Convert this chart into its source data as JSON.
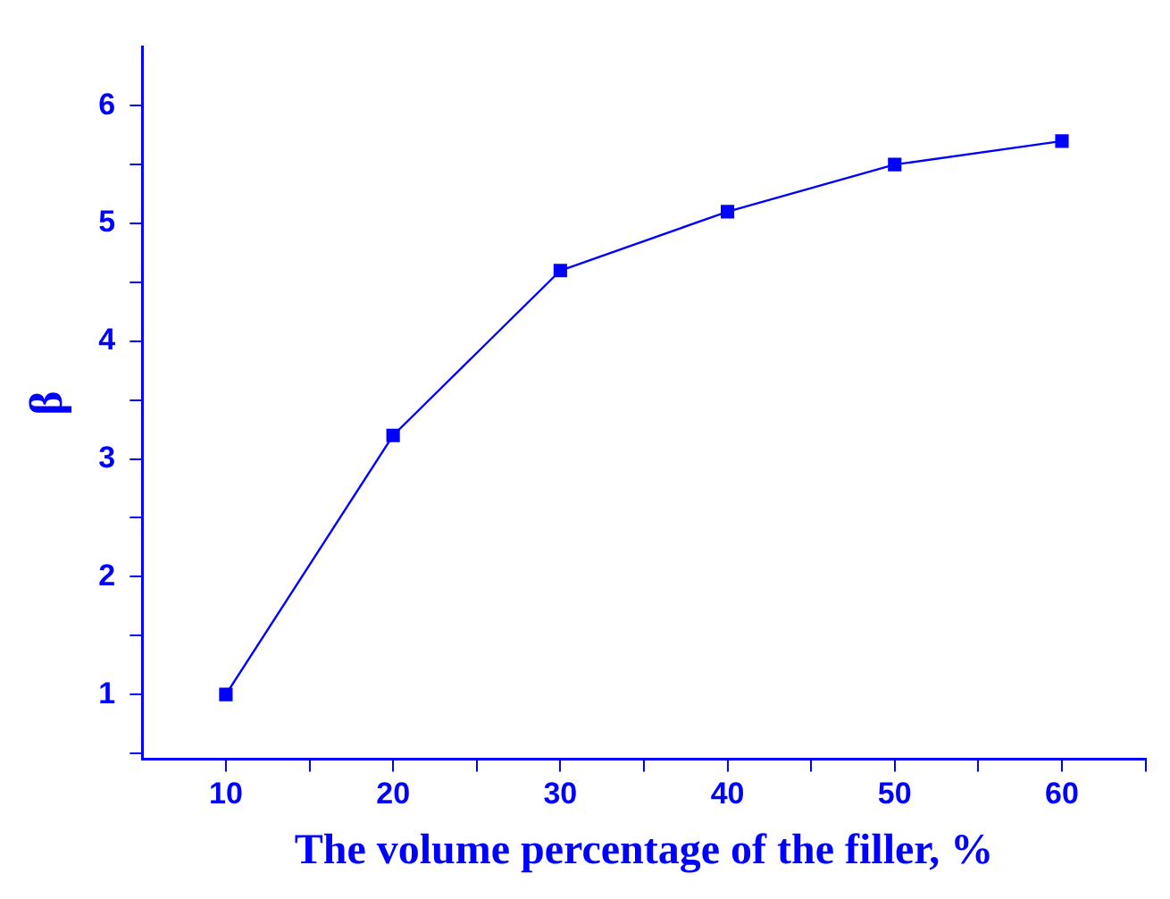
{
  "chart_data": {
    "type": "line",
    "xlabel": "The volume percentage of the filler, %",
    "ylabel": "β",
    "x": [
      10,
      20,
      30,
      40,
      50,
      60
    ],
    "series": [
      {
        "color": "#0000ff",
        "values": [
          1,
          3.2,
          4.6,
          5.1,
          5.5,
          5.7
        ]
      }
    ],
    "xlim": [
      5,
      65
    ],
    "xticks": [
      10,
      {
        "value": 15,
        "label": null
      },
      20,
      {
        "value": 25,
        "label": null
      },
      30,
      {
        "value": 35,
        "label": null
      },
      40,
      {
        "value": 45,
        "label": null
      },
      50,
      {
        "value": 55,
        "label": null
      },
      60,
      {
        "value": 65,
        "label": null
      }
    ],
    "ylim": [
      0.45,
      6.5
    ],
    "yticks": [
      {
        "value": 0.5,
        "label": null
      },
      1,
      {
        "value": 1.5,
        "label": null
      },
      2,
      {
        "value": 2.5,
        "label": null
      },
      3,
      {
        "value": 3.5,
        "label": null
      },
      4,
      {
        "value": 4.5,
        "label": null
      },
      5,
      {
        "value": 5.5,
        "label": null
      },
      6
    ],
    "grid": false,
    "legend": false,
    "marker": "square",
    "line_style": "solid"
  }
}
